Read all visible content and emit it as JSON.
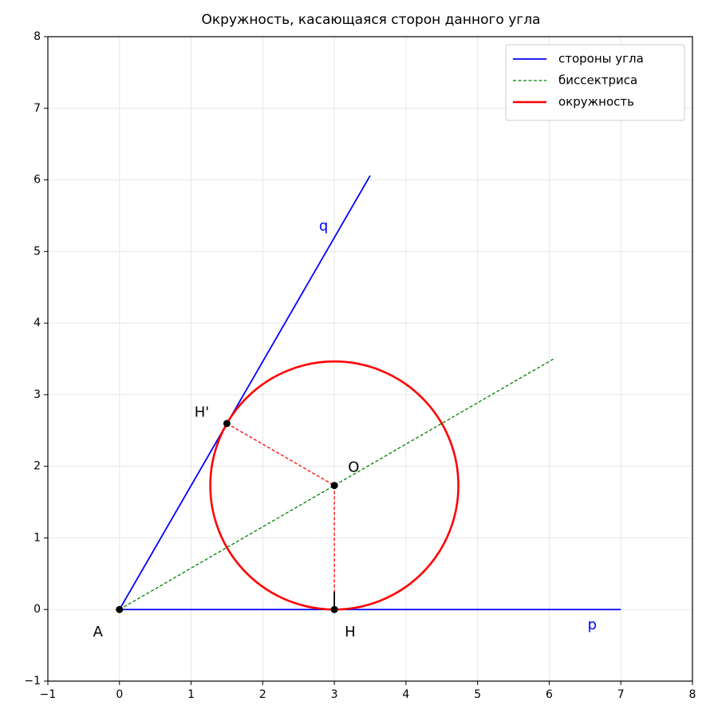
{
  "chart_data": {
    "type": "line",
    "title": "Окружность, касающаяся сторон данного угла",
    "xlim": [
      -1,
      8
    ],
    "ylim": [
      -1,
      8
    ],
    "xticks": [
      {
        "value": -1,
        "label": "−1"
      },
      0,
      1,
      2,
      3,
      4,
      5,
      6,
      7,
      8
    ],
    "yticks": [
      {
        "value": -1,
        "label": "−1"
      },
      0,
      1,
      2,
      3,
      4,
      5,
      6,
      7,
      8
    ],
    "grid": true,
    "legend": "upper right",
    "series": [
      {
        "name": "стороны угла",
        "color": "#0000ff",
        "x": [
          7,
          0,
          3.5
        ],
        "y": [
          0,
          0,
          6.06
        ]
      },
      {
        "name": "биссектриса",
        "color": "#008000",
        "dashed": true,
        "x": [
          0,
          6.06
        ],
        "y": [
          0,
          3.5
        ]
      },
      {
        "name": "окружность",
        "color": "#ff0000",
        "shape": "circle",
        "center": [
          3,
          1.732
        ],
        "radius": 1.732
      },
      {
        "color": "#ff0000",
        "dashed": true,
        "x": [
          1.5,
          3,
          3
        ],
        "y": [
          2.598,
          1.732,
          0
        ]
      },
      {
        "color": "#000000",
        "x": [
          3,
          3
        ],
        "y": [
          0,
          0.25
        ]
      }
    ],
    "points": {
      "color": "#000000",
      "x": [
        0,
        3,
        1.5,
        3
      ],
      "y": [
        0,
        0,
        2.598,
        1.732
      ]
    },
    "annotations": [
      {
        "text": "q",
        "x": 2.85,
        "y": 5.35,
        "color": "#0000ff"
      },
      {
        "text": "p",
        "x": 6.6,
        "y": -0.22,
        "color": "#0000ff"
      },
      {
        "text": "A",
        "x": -0.3,
        "y": -0.32,
        "color": "#000000"
      },
      {
        "text": "H",
        "x": 3.22,
        "y": -0.32,
        "color": "#000000"
      },
      {
        "text": "H'",
        "x": 1.15,
        "y": 2.75,
        "color": "#000000"
      },
      {
        "text": "O",
        "x": 3.27,
        "y": 1.98,
        "color": "#000000"
      }
    ]
  }
}
